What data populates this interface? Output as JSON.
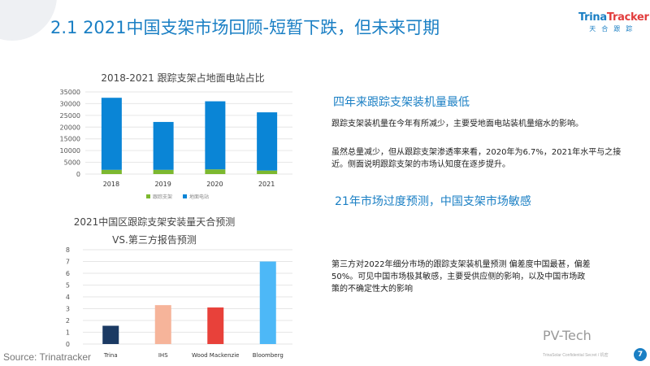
{
  "header": {
    "title": "2.1  2021中国支架市场回顾-短暂下跌，但未来可期",
    "logo_top": "Trina",
    "logo_top2": "Tracker",
    "logo_sub": "天合跟踪"
  },
  "chart_data": [
    {
      "type": "bar",
      "stacked": true,
      "title": "2018-2021 跟踪支架占地面电站占比",
      "categories": [
        "2018",
        "2019",
        "2020",
        "2021"
      ],
      "series": [
        {
          "name": "跟踪支架",
          "color": "#7cb82f",
          "values": [
            1800,
            1800,
            2000,
            1500
          ]
        },
        {
          "name": "地面电站",
          "color": "#0a85d6",
          "values": [
            30700,
            20400,
            29000,
            24800
          ]
        }
      ],
      "ylim": [
        0,
        35000
      ],
      "yticks": [
        0,
        5000,
        10000,
        15000,
        20000,
        25000,
        30000,
        35000
      ],
      "grid": true,
      "legend": "bottom"
    },
    {
      "type": "bar",
      "title": "2021中国区跟踪支架安装量天合预测",
      "subtitle": "VS.第三方报告预测",
      "categories": [
        "Trina",
        "IHS",
        "Wood Mackenzie",
        "Bloomberg"
      ],
      "values": [
        1.55,
        3.3,
        3.1,
        7.0
      ],
      "colors": [
        "#1b3a63",
        "#f6b49a",
        "#e8413a",
        "#4db8f7"
      ],
      "ylim": [
        0,
        8
      ],
      "yticks": [
        0,
        1,
        2,
        3,
        4,
        5,
        6,
        7,
        8
      ],
      "grid": true
    }
  ],
  "right": {
    "h1": "四年来跟踪支架装机量最低",
    "p1": "跟踪支架装机量在今年有所减少，主要受地面电站装机量缩水的影响。",
    "p2": "虽然总量减少，但从跟踪支架渗透率来看，2020年为6.7%，2021年水平与之接近。侧面说明跟踪支架的市场认知度在逐步提升。",
    "h2": "21年市场过度预测，中国支架市场敏感",
    "p3": "第三方对2022年细分市场的跟踪支架装机量预测 偏差度中国最甚，偏差50%。可见中国市场极其敏感，主要受供应侧的影响，以及中国市场政策的不确定性大的影响"
  },
  "footer": {
    "source": "Source: Trinatracker",
    "watermark": "PV-Tech",
    "confidential": "TrinaSolar Confidential Secret / 机密",
    "page": "7"
  }
}
